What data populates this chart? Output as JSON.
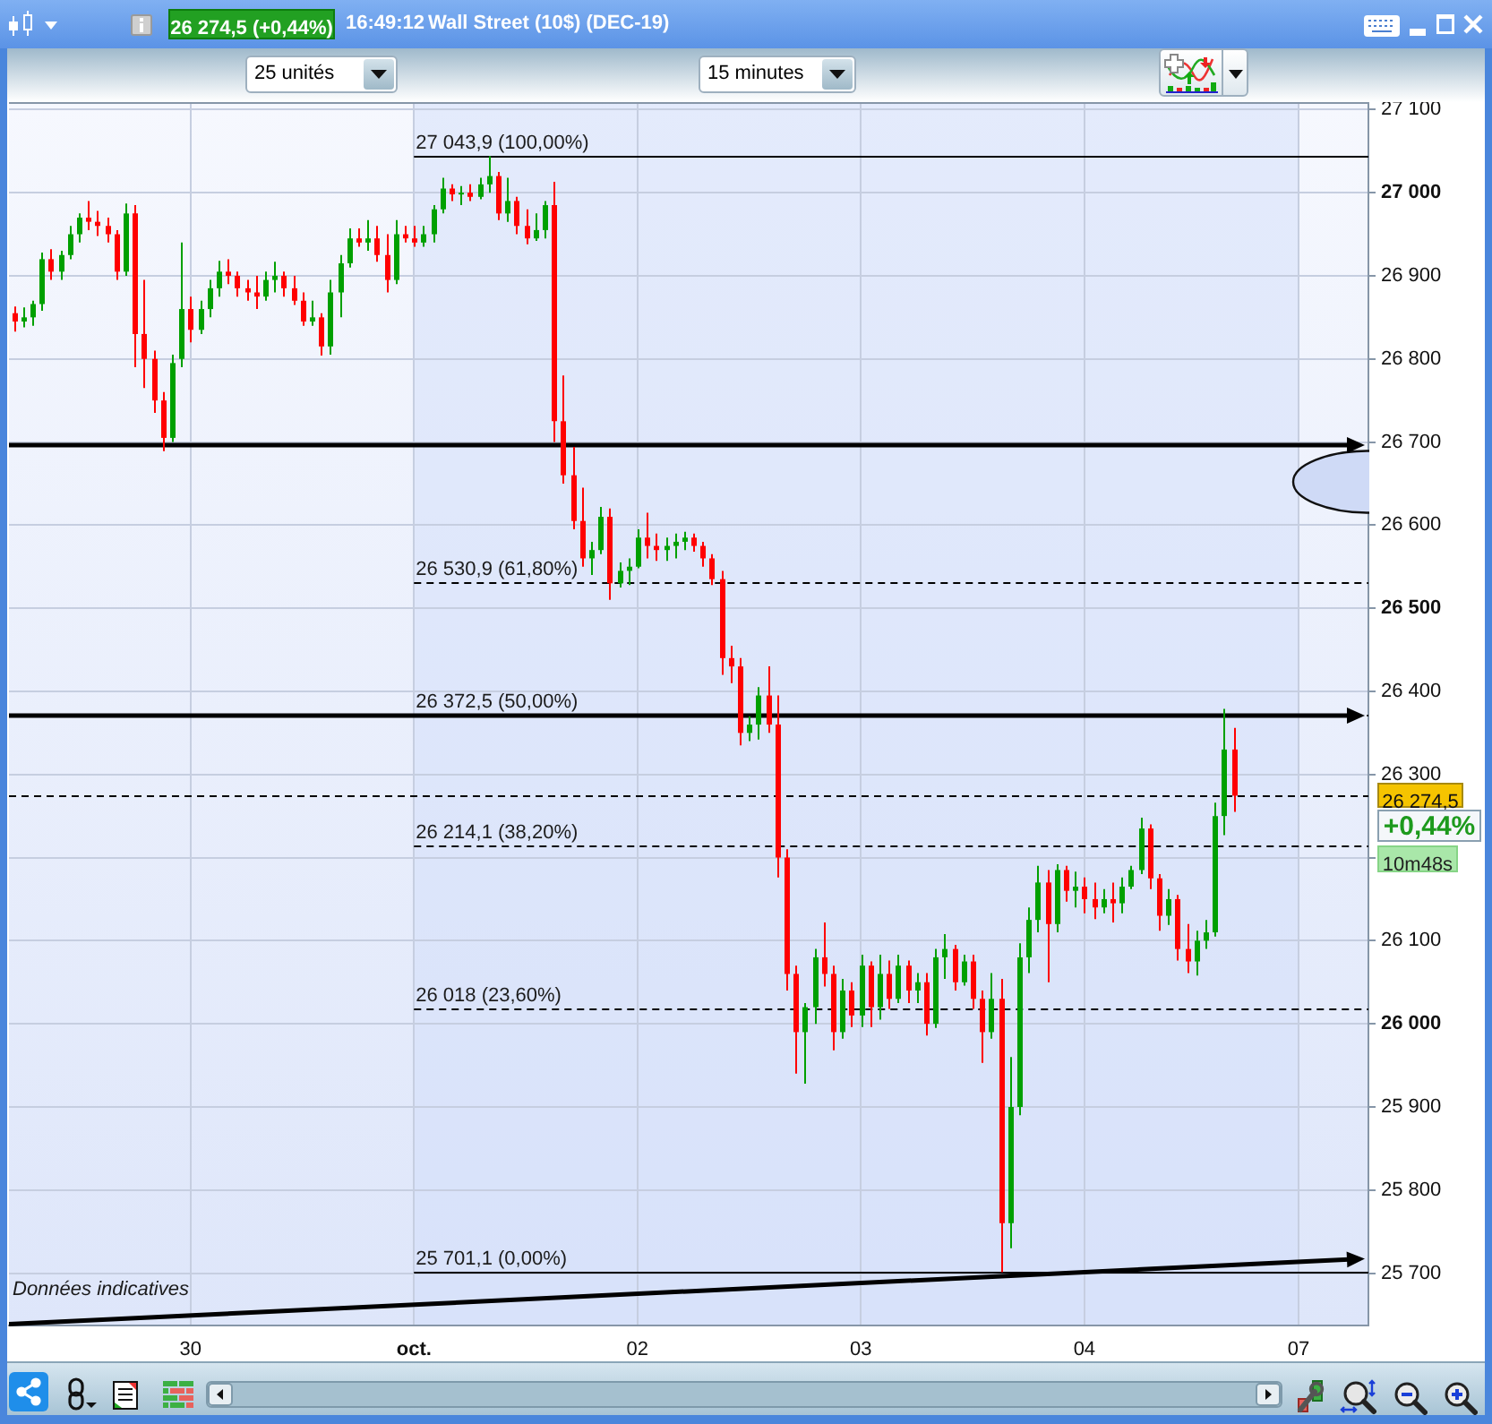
{
  "chart_data": {
    "type": "candlestick",
    "title": "Wall Street (10$) (DEC-19)",
    "categories": [
      null,
      null,
      null,
      null,
      null,
      null,
      null,
      null,
      null,
      null,
      null,
      null,
      null,
      null,
      null,
      null,
      null,
      null,
      null,
      "30",
      null,
      null,
      null,
      null,
      null,
      null,
      null,
      null,
      null,
      null,
      null,
      null,
      null,
      null,
      null,
      null,
      null,
      null,
      null,
      null,
      null,
      null,
      null,
      "oct.",
      null,
      null,
      null,
      null,
      null,
      null,
      null,
      null,
      null,
      null,
      null,
      null,
      null,
      null,
      null,
      null,
      null,
      null,
      null,
      null,
      null,
      null,
      null,
      "02",
      null,
      null,
      null,
      null,
      null,
      null,
      null,
      null,
      null,
      null,
      null,
      null,
      null,
      null,
      null,
      null,
      null,
      null,
      null,
      null,
      null,
      null,
      null,
      "03",
      null,
      null,
      null,
      null,
      null,
      null,
      null,
      null,
      null,
      null,
      null,
      null,
      null,
      null,
      null,
      null,
      null,
      null,
      null,
      null,
      null,
      null,
      null,
      "04",
      null,
      null,
      null,
      null,
      null,
      null,
      null,
      null,
      null,
      null,
      null,
      null,
      null,
      null,
      null,
      null,
      null,
      null,
      null,
      null,
      null,
      null,
      "07",
      null,
      null,
      null,
      null,
      null,
      null,
      null
    ],
    "ohlc": [
      [
        26855,
        26863,
        26833,
        26845
      ],
      [
        26845,
        26862,
        26838,
        26850
      ],
      [
        26850,
        26870,
        26840,
        26866
      ],
      [
        26866,
        26928,
        26858,
        26920
      ],
      [
        26920,
        26932,
        26895,
        26905
      ],
      [
        26905,
        26930,
        26895,
        26925
      ],
      [
        26925,
        26960,
        26920,
        26950
      ],
      [
        26950,
        26975,
        26940,
        26970
      ],
      [
        26970,
        26990,
        26955,
        26965
      ],
      [
        26965,
        26978,
        26948,
        26960
      ],
      [
        26960,
        26970,
        26940,
        26950
      ],
      [
        26950,
        26955,
        26895,
        26905
      ],
      [
        26905,
        26987,
        26900,
        26975
      ],
      [
        26975,
        26985,
        26790,
        26830
      ],
      [
        26830,
        26895,
        26765,
        26800
      ],
      [
        26800,
        26810,
        26735,
        26750
      ],
      [
        26750,
        26760,
        26689,
        26705
      ],
      [
        26705,
        26805,
        26700,
        26795
      ],
      [
        26800,
        26940,
        26790,
        26860
      ],
      [
        26860,
        26875,
        26820,
        26835
      ],
      [
        26835,
        26870,
        26830,
        26860
      ],
      [
        26860,
        26895,
        26850,
        26885
      ],
      [
        26885,
        26918,
        26875,
        26905
      ],
      [
        26905,
        26920,
        26890,
        26900
      ],
      [
        26900,
        26905,
        26875,
        26885
      ],
      [
        26885,
        26895,
        26870,
        26880
      ],
      [
        26880,
        26900,
        26860,
        26875
      ],
      [
        26875,
        26905,
        26870,
        26895
      ],
      [
        26895,
        26917,
        26880,
        26900
      ],
      [
        26900,
        26905,
        26875,
        26885
      ],
      [
        26885,
        26900,
        26865,
        26870
      ],
      [
        26870,
        26880,
        26840,
        26845
      ],
      [
        26845,
        26870,
        26840,
        26850
      ],
      [
        26850,
        26855,
        26804,
        26815
      ],
      [
        26815,
        26895,
        26805,
        26880
      ],
      [
        26880,
        26925,
        26850,
        26915
      ],
      [
        26915,
        26957,
        26910,
        26945
      ],
      [
        26945,
        26957,
        26935,
        26940
      ],
      [
        26940,
        26967,
        26930,
        26945
      ],
      [
        26945,
        26960,
        26917,
        26925
      ],
      [
        26925,
        26950,
        26880,
        26895
      ],
      [
        26895,
        26967,
        26890,
        26950
      ],
      [
        26950,
        26960,
        26940,
        26945
      ],
      [
        26945,
        26960,
        26935,
        26940
      ],
      [
        26940,
        26960,
        26935,
        26950
      ],
      [
        26950,
        26985,
        26940,
        26980
      ],
      [
        26980,
        27018,
        26975,
        27005
      ],
      [
        27005,
        27010,
        26990,
        26998
      ],
      [
        26998,
        27008,
        26985,
        27000
      ],
      [
        27000,
        27010,
        26990,
        26995
      ],
      [
        26995,
        27018,
        26992,
        27010
      ],
      [
        27010,
        27044,
        27000,
        27020
      ],
      [
        27020,
        27025,
        26967,
        26975
      ],
      [
        26975,
        27018,
        26965,
        26990
      ],
      [
        26990,
        26995,
        26950,
        26960
      ],
      [
        26960,
        26980,
        26938,
        26945
      ],
      [
        26945,
        26975,
        26942,
        26955
      ],
      [
        26955,
        26990,
        26945,
        26985
      ],
      [
        26985,
        27013,
        26700,
        26725
      ],
      [
        26725,
        26780,
        26650,
        26660
      ],
      [
        26660,
        26694,
        26595,
        26605
      ],
      [
        26605,
        26645,
        26550,
        26560
      ],
      [
        26560,
        26580,
        26540,
        26570
      ],
      [
        26570,
        26622,
        26565,
        26610
      ],
      [
        26610,
        26620,
        26510,
        26530
      ],
      [
        26530,
        26555,
        26525,
        26545
      ],
      [
        26545,
        26560,
        26528,
        26550
      ],
      [
        26550,
        26595,
        26548,
        26585
      ],
      [
        26585,
        26615,
        26560,
        26575
      ],
      [
        26575,
        26590,
        26557,
        26570
      ],
      [
        26570,
        26585,
        26557,
        26575
      ],
      [
        26575,
        26590,
        26560,
        26580
      ],
      [
        26580,
        26592,
        26570,
        26585
      ],
      [
        26585,
        26590,
        26568,
        26575
      ],
      [
        26575,
        26580,
        26550,
        26560
      ],
      [
        26560,
        26565,
        26528,
        26535
      ],
      [
        26535,
        26545,
        26420,
        26440
      ],
      [
        26440,
        26455,
        26410,
        26430
      ],
      [
        26430,
        26440,
        26335,
        26350
      ],
      [
        26350,
        26370,
        26340,
        26360
      ],
      [
        26360,
        26405,
        26342,
        26395
      ],
      [
        26395,
        26430,
        26350,
        26360
      ],
      [
        26360,
        26395,
        26176,
        26200
      ],
      [
        26200,
        26210,
        26040,
        26060
      ],
      [
        26060,
        26070,
        25940,
        25990
      ],
      [
        25990,
        26025,
        25928,
        26020
      ],
      [
        26020,
        26090,
        26000,
        26080
      ],
      [
        26080,
        26122,
        26045,
        26060
      ],
      [
        26060,
        26070,
        25968,
        25990
      ],
      [
        25990,
        26054,
        25982,
        26040
      ],
      [
        26040,
        26050,
        25996,
        26010
      ],
      [
        26010,
        26083,
        25996,
        26070
      ],
      [
        26070,
        26075,
        25996,
        26020
      ],
      [
        26020,
        26083,
        26005,
        26060
      ],
      [
        26060,
        26076,
        26018,
        26030
      ],
      [
        26030,
        26083,
        26025,
        26070
      ],
      [
        26070,
        26076,
        26025,
        26040
      ],
      [
        26040,
        26061,
        26025,
        26050
      ],
      [
        26050,
        26061,
        25986,
        26000
      ],
      [
        26000,
        26090,
        25995,
        26080
      ],
      [
        26080,
        26108,
        26054,
        26090
      ],
      [
        26090,
        26095,
        26040,
        26050
      ],
      [
        26050,
        26083,
        26046,
        26075
      ],
      [
        26075,
        26083,
        26018,
        26030
      ],
      [
        26030,
        26040,
        25953,
        25990
      ],
      [
        25990,
        26061,
        25982,
        26030
      ],
      [
        26030,
        26054,
        25701,
        25760
      ],
      [
        25760,
        25960,
        25730,
        25900
      ],
      [
        25900,
        26097,
        25890,
        26080
      ],
      [
        26080,
        26140,
        26061,
        26125
      ],
      [
        26125,
        26190,
        26110,
        26170
      ],
      [
        26170,
        26185,
        26050,
        26120
      ],
      [
        26120,
        26192,
        26110,
        26185
      ],
      [
        26185,
        26190,
        26147,
        26160
      ],
      [
        26160,
        26183,
        26140,
        26165
      ],
      [
        26165,
        26176,
        26133,
        26150
      ],
      [
        26150,
        26170,
        26126,
        26140
      ],
      [
        26140,
        26162,
        26133,
        26150
      ],
      [
        26150,
        26170,
        26122,
        26145
      ],
      [
        26145,
        26176,
        26133,
        26165
      ],
      [
        26165,
        26190,
        26162,
        26185
      ],
      [
        26185,
        26248,
        26180,
        26235
      ],
      [
        26235,
        26240,
        26162,
        26175
      ],
      [
        26175,
        26180,
        26112,
        26130
      ],
      [
        26130,
        26162,
        26119,
        26150
      ],
      [
        26150,
        26155,
        26076,
        26090
      ],
      [
        26090,
        26120,
        26061,
        26075
      ],
      [
        26075,
        26112,
        26058,
        26100
      ],
      [
        26100,
        26125,
        26090,
        26110
      ],
      [
        26110,
        26266,
        26105,
        26250
      ],
      [
        26250,
        26379,
        26227,
        26330
      ],
      [
        26330,
        26356,
        26255,
        26274.5
      ],
      null,
      null,
      null,
      null,
      null,
      null,
      null,
      null,
      null,
      null,
      null,
      null,
      null,
      null
    ],
    "colors": [
      "#ff0000",
      "#00a000",
      "#00a000",
      "#00a000",
      "#ff0000",
      "#00a000",
      "#00a000",
      "#00a000",
      "#ff0000",
      "#ff0000",
      "#ff0000",
      "#ff0000",
      "#00a000",
      "#ff0000",
      "#ff0000",
      "#ff0000",
      "#ff0000",
      "#00a000",
      "#00a000",
      "#ff0000",
      "#00a000",
      "#00a000",
      "#00a000",
      "#ff0000",
      "#ff0000",
      "#ff0000",
      "#ff0000",
      "#00a000",
      "#00a000",
      "#ff0000",
      "#ff0000",
      "#ff0000",
      "#00a000",
      "#ff0000",
      "#00a000",
      "#00a000",
      "#00a000",
      "#ff0000",
      "#00a000",
      "#ff0000",
      "#ff0000",
      "#00a000",
      "#ff0000",
      "#ff0000",
      "#00a000",
      "#00a000",
      "#00a000",
      "#ff0000",
      "#00a000",
      "#ff0000",
      "#00a000",
      "#00a000",
      "#ff0000",
      "#00a000",
      "#ff0000",
      "#ff0000",
      "#00a000",
      "#00a000",
      "#ff0000",
      "#ff0000",
      "#ff0000",
      "#ff0000",
      "#00a000",
      "#00a000",
      "#ff0000",
      "#00a000",
      "#00a000",
      "#00a000",
      "#ff0000",
      "#ff0000",
      "#00a000",
      "#00a000",
      "#00a000",
      "#ff0000",
      "#ff0000",
      "#ff0000",
      "#ff0000",
      "#ff0000",
      "#ff0000",
      "#00a000",
      "#00a000",
      "#ff0000",
      "#ff0000",
      "#ff0000",
      "#ff0000",
      "#00a000",
      "#00a000",
      "#ff0000",
      "#ff0000",
      "#00a000",
      "#ff0000",
      "#00a000",
      "#ff0000",
      "#00a000",
      "#ff0000",
      "#00a000",
      "#ff0000",
      "#00a000",
      "#ff0000",
      "#00a000",
      "#00a000",
      "#ff0000",
      "#00a000",
      "#ff0000",
      "#ff0000",
      "#00a000",
      "#ff0000",
      "#00a000",
      "#00a000",
      "#00a000",
      "#00a000",
      "#ff0000",
      "#00a000",
      "#ff0000",
      "#00a000",
      "#ff0000",
      "#ff0000",
      "#00a000",
      "#ff0000",
      "#00a000",
      "#00a000",
      "#00a000",
      "#ff0000",
      "#ff0000",
      "#00a000",
      "#ff0000",
      "#ff0000",
      "#00a000",
      "#00a000",
      "#00a000",
      "#00a000",
      "#ff0000",
      null,
      null,
      null,
      null,
      null,
      null,
      null,
      null,
      null,
      null,
      null,
      null,
      null,
      null
    ],
    "ylim": [
      25637,
      27109
    ],
    "yticks": [
      {
        "value": 25700,
        "label": "25 700"
      },
      {
        "value": 25800,
        "label": "25 800"
      },
      {
        "value": 25900,
        "label": "25 900"
      },
      {
        "value": 26000,
        "label": "26 000"
      },
      {
        "value": 26100,
        "label": "26 100"
      },
      {
        "value": 26200,
        "label": null
      },
      {
        "value": 26300,
        "label": "26 300"
      },
      {
        "value": 26400,
        "label": "26 400"
      },
      {
        "value": 26500,
        "label": "26 500"
      },
      {
        "value": 26600,
        "label": "26 600"
      },
      {
        "value": 26700,
        "label": "26 700"
      },
      {
        "value": 26800,
        "label": "26 800"
      },
      {
        "value": 26900,
        "label": "26 900"
      },
      {
        "value": 27000,
        "label": "27 000"
      },
      {
        "value": 27100,
        "label": "27 100"
      }
    ],
    "grid": true,
    "bands": [
      {
        "axis": "x",
        "from": "oct.",
        "to": "07",
        "color": "#d2defa"
      }
    ],
    "ref_lines": [
      {
        "axis": "y",
        "value": 27043.9,
        "label": "27 043,9 (100,00%)",
        "line_style": "solid"
      },
      {
        "axis": "y",
        "value": 26530.9,
        "label": "26 530,9 (61,80%)",
        "line_style": "dashed"
      },
      {
        "axis": "y",
        "value": 26372.5,
        "label": "26 372,5 (50,00%)",
        "line_style": "dashed"
      },
      {
        "axis": "y",
        "value": 26214.1,
        "label": "26 214,1 (38,20%)",
        "line_style": "dashed"
      },
      {
        "axis": "y",
        "value": 26018,
        "label": "26 018 (23,60%)",
        "line_style": "dashed"
      },
      {
        "axis": "y",
        "value": 25701.1,
        "label": "25 701,1 (0,00%)",
        "line_style": "solid"
      },
      {
        "axis": "y",
        "value": 26697,
        "line_style": "solid"
      },
      {
        "axis": "y",
        "value": 26372.5,
        "line_style": "solid"
      },
      {
        "axis": "y",
        "value": 26274.5,
        "line_style": "dashed"
      }
    ],
    "annotations": [
      "16:49:12",
      "26 274,5 (+0,44%)",
      "25 unités",
      "15 minutes",
      "+0,44%",
      "10m48s",
      "Données indicatives",
      "26 274,5"
    ]
  }
}
